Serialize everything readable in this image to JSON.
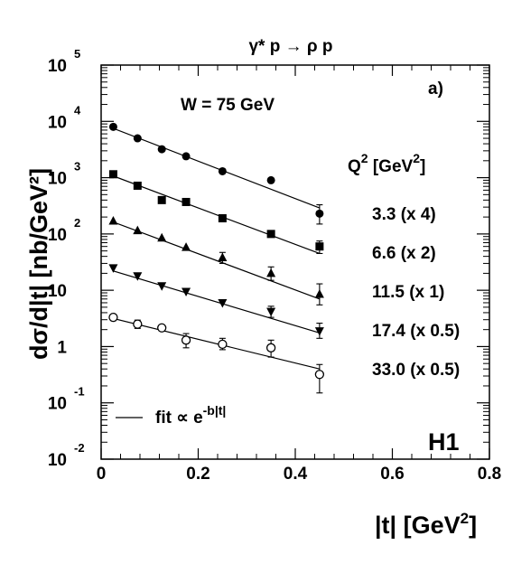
{
  "chart_data": {
    "type": "scatter",
    "title": "γ* p → ρ p",
    "panel_label": "a)",
    "experiment_label": "H1",
    "annotation": "W = 75 GeV",
    "xlabel": {
      "main": "|t| [GeV",
      "sup": "2",
      "close": "]"
    },
    "ylabel": "dσ/d|t| [nb/GeV²]",
    "x_scale": "linear",
    "y_scale": "log",
    "xlim": [
      0,
      0.8
    ],
    "ylim": [
      0.01,
      100000
    ],
    "x_ticks": [
      "0",
      "0.2",
      "0.4",
      "0.6",
      "0.8"
    ],
    "y_ticks": [
      {
        "base": "10",
        "exp": "-2"
      },
      {
        "base": "10",
        "exp": "-1"
      },
      {
        "base": "1",
        "exp": ""
      },
      {
        "base": "10",
        "exp": ""
      },
      {
        "base": "10",
        "exp": "2"
      },
      {
        "base": "10",
        "exp": "3"
      },
      {
        "base": "10",
        "exp": "4"
      },
      {
        "base": "10",
        "exp": "5"
      }
    ],
    "legend": {
      "title": {
        "main": "Q",
        "sup": "2",
        "rest": " [GeV",
        "sup2": "2",
        "close": "]"
      },
      "fit": {
        "text": "fit ∝ e",
        "sup": "-b|t|"
      }
    },
    "series": [
      {
        "name": "3.3 (x 4)",
        "marker": "filled-circle",
        "x": [
          0.025,
          0.075,
          0.125,
          0.175,
          0.25,
          0.35,
          0.45
        ],
        "y": [
          8000,
          5000,
          3200,
          2400,
          1300,
          900,
          230
        ],
        "err_low": [
          null,
          null,
          null,
          null,
          null,
          null,
          150
        ],
        "err_high": [
          null,
          null,
          null,
          null,
          null,
          null,
          330
        ],
        "fit": [
          [
            0.025,
            7500
          ],
          [
            0.45,
            290
          ]
        ]
      },
      {
        "name": "6.6 (x 2)",
        "marker": "filled-square",
        "x": [
          0.025,
          0.075,
          0.125,
          0.175,
          0.25,
          0.35,
          0.45
        ],
        "y": [
          1150,
          720,
          400,
          370,
          190,
          100,
          60
        ],
        "err_low": [
          null,
          null,
          null,
          null,
          null,
          null,
          45
        ],
        "err_high": [
          null,
          null,
          null,
          null,
          null,
          null,
          75
        ],
        "fit": [
          [
            0.025,
            1070
          ],
          [
            0.45,
            45
          ]
        ]
      },
      {
        "name": "11.5 (x 1)",
        "marker": "filled-triangle-up",
        "x": [
          0.025,
          0.075,
          0.125,
          0.175,
          0.25,
          0.35,
          0.45
        ],
        "y": [
          170,
          115,
          85,
          58,
          38,
          20,
          8.5
        ],
        "err_low": [
          null,
          null,
          null,
          null,
          30,
          15,
          5.5
        ],
        "err_high": [
          null,
          null,
          null,
          null,
          47,
          26,
          13
        ],
        "fit": [
          [
            0.025,
            163
          ],
          [
            0.45,
            7
          ]
        ]
      },
      {
        "name": "17.4 (x 0.5)",
        "marker": "filled-triangle-down",
        "x": [
          0.025,
          0.075,
          0.125,
          0.175,
          0.25,
          0.35,
          0.45
        ],
        "y": [
          25,
          18,
          12,
          9.5,
          6.0,
          4.2,
          1.9
        ],
        "err_low": [
          null,
          null,
          null,
          null,
          null,
          3.3,
          1.4
        ],
        "err_high": [
          null,
          null,
          null,
          null,
          null,
          5.2,
          2.6
        ],
        "fit": [
          [
            0.025,
            22
          ],
          [
            0.45,
            1.75
          ]
        ]
      },
      {
        "name": "33.0 (x 0.5)",
        "marker": "open-circle",
        "x": [
          0.025,
          0.075,
          0.125,
          0.175,
          0.25,
          0.35,
          0.45
        ],
        "y": [
          3.3,
          2.5,
          2.15,
          1.3,
          1.1,
          0.95,
          0.32
        ],
        "err_low": [
          2.9,
          2.1,
          null,
          0.95,
          0.88,
          0.65,
          0.15
        ],
        "err_high": [
          3.7,
          2.95,
          null,
          1.7,
          1.4,
          1.3,
          0.48
        ],
        "fit": [
          [
            0.025,
            3.15
          ],
          [
            0.45,
            0.4
          ]
        ]
      }
    ]
  }
}
